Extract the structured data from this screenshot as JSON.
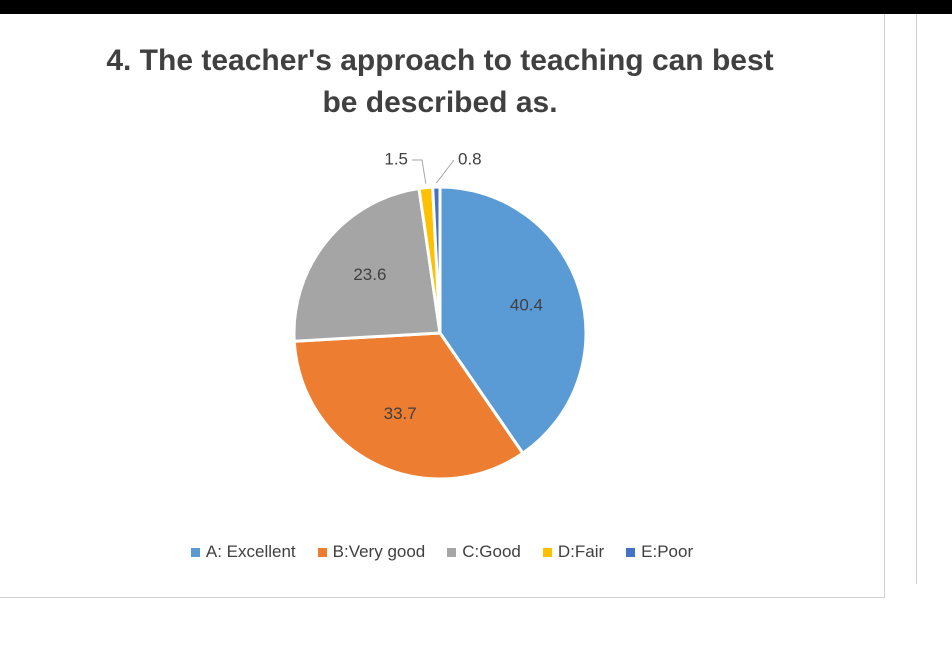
{
  "chart_data": {
    "type": "pie",
    "title": "4. The teacher's approach to teaching can best be described as.",
    "categories": [
      "A: Excellent",
      "B:Very good",
      "C:Good",
      "D:Fair",
      "E:Poor"
    ],
    "values": [
      40.4,
      33.7,
      23.6,
      1.5,
      0.8
    ],
    "colors": [
      "#5b9bd5",
      "#ed7d31",
      "#a5a5a5",
      "#ffc000",
      "#4472c4"
    ],
    "legend": "bottom"
  }
}
